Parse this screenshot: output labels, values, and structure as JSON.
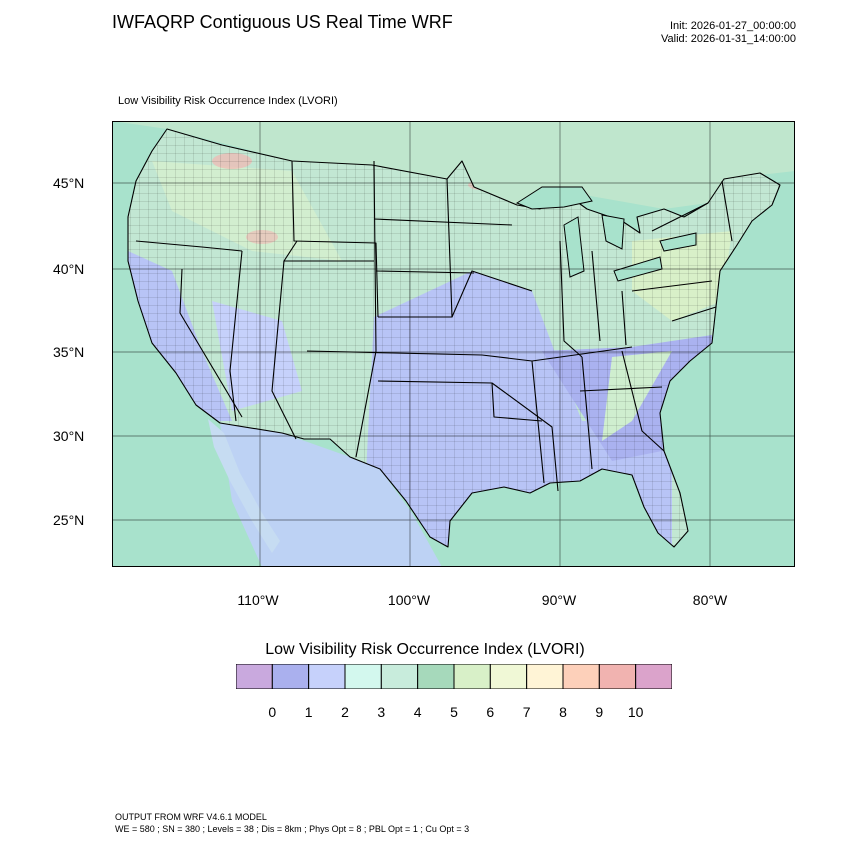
{
  "header": {
    "title": "IWFAQRP Contiguous US Real Time WRF",
    "init": "Init: 2026-01-27_00:00:00",
    "valid": "Valid: 2026-01-31_14:00:00"
  },
  "map": {
    "subtitle": "Low Visibility Risk Occurrence Index   (LVORI)",
    "lat_labels": [
      "45°N",
      "40°N",
      "35°N",
      "30°N",
      "25°N"
    ],
    "lon_labels": [
      "110°W",
      "100°W",
      "90°W",
      "80°W"
    ],
    "colors": {
      "ocean": "#a8e2cc",
      "land_base": "#c2e7d3",
      "low_risk": "#b8c4f6",
      "very_low_risk": "#aab2f0",
      "mid_risk": "#c6ecd0",
      "high_risk": "#f2b6b2",
      "border": "#000000"
    }
  },
  "legend": {
    "title": "Low Visibility Risk Occurrence Index  (LVORI)",
    "tick_labels": [
      "0",
      "1",
      "2",
      "3",
      "4",
      "5",
      "6",
      "7",
      "8",
      "9",
      "10"
    ],
    "colors": [
      "#c9a9de",
      "#aab0ee",
      "#c6d1fb",
      "#d3f8ee",
      "#c8ecdc",
      "#a6d9bb",
      "#d8f0c8",
      "#f0f8d6",
      "#fff4d6",
      "#fdd0ba",
      "#f1b3b0",
      "#dba3cb"
    ]
  },
  "footer": {
    "line1": "OUTPUT FROM WRF V4.6.1 MODEL",
    "line2": "WE = 580 ; SN = 380 ; Levels = 38 ; Dis = 8km ; Phys Opt = 8 ; PBL Opt = 1 ; Cu Opt = 3"
  }
}
